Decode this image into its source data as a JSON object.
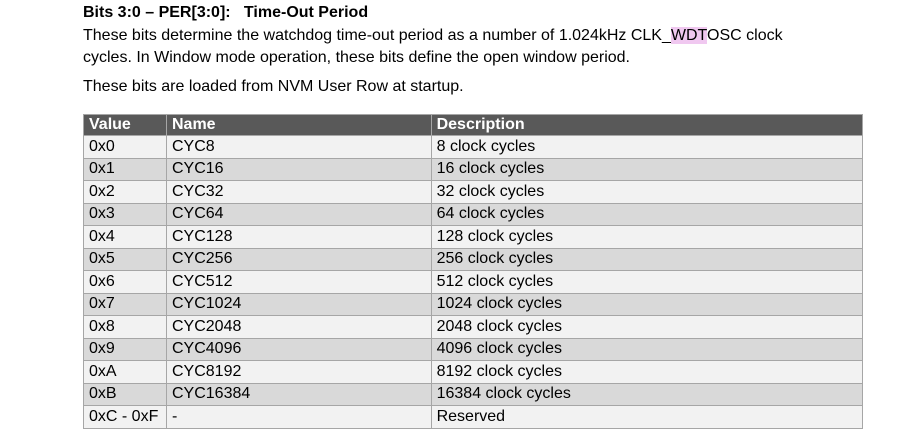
{
  "heading": "Bits 3:0 – PER[3:0]:   Time-Out Period",
  "paragraph1": {
    "before": "These bits determine the watchdog time-out period as a number of 1.024kHz CLK_",
    "highlight": "WDT",
    "after": "OSC clock cycles. In Window mode operation, these bits define the open window period."
  },
  "paragraph2": "These bits are loaded from NVM User Row at startup.",
  "table": {
    "header": [
      "Value",
      "Name",
      "Description"
    ],
    "rows": [
      [
        "0x0",
        "CYC8",
        "8 clock cycles"
      ],
      [
        "0x1",
        "CYC16",
        "16 clock cycles"
      ],
      [
        "0x2",
        "CYC32",
        "32 clock cycles"
      ],
      [
        "0x3",
        "CYC64",
        "64 clock cycles"
      ],
      [
        "0x4",
        "CYC128",
        "128 clock cycles"
      ],
      [
        "0x5",
        "CYC256",
        "256 clock cycles"
      ],
      [
        "0x6",
        "CYC512",
        "512 clock cycles"
      ],
      [
        "0x7",
        "CYC1024",
        "1024 clock cycles"
      ],
      [
        "0x8",
        "CYC2048",
        "2048 clock cycles"
      ],
      [
        "0x9",
        "CYC4096",
        "4096 clock cycles"
      ],
      [
        "0xA",
        "CYC8192",
        "8192 clock cycles"
      ],
      [
        "0xB",
        "CYC16384",
        "16384 clock cycles"
      ],
      [
        "0xC - 0xF",
        "-",
        "Reserved"
      ]
    ]
  }
}
